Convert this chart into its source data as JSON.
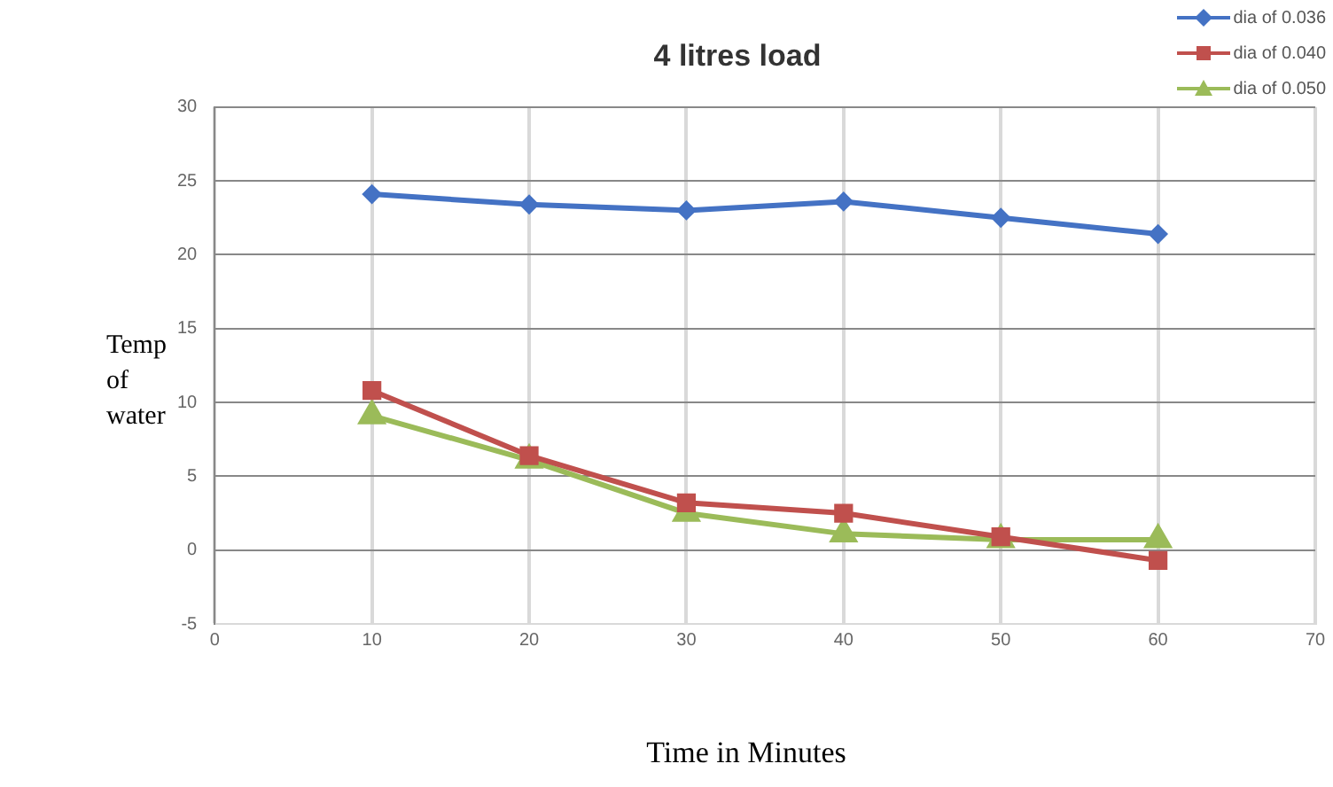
{
  "chart_data": {
    "type": "line",
    "title": "4 litres load",
    "xlabel": "Time in Minutes",
    "ylabel": "Temp of water",
    "x": [
      10,
      20,
      30,
      40,
      50,
      60
    ],
    "series": [
      {
        "name": "dia of 0.036",
        "color": "#4472c4",
        "marker": "diamond",
        "values": [
          24.1,
          23.4,
          23.0,
          23.6,
          22.5,
          21.4
        ]
      },
      {
        "name": "dia of 0.040",
        "color": "#c0504d",
        "marker": "square",
        "values": [
          10.8,
          6.4,
          3.2,
          2.5,
          0.9,
          -0.7
        ]
      },
      {
        "name": "dia of 0.050",
        "color": "#9bbb59",
        "marker": "triangle",
        "values": [
          9.1,
          6.1,
          2.5,
          1.1,
          0.7,
          0.7
        ]
      }
    ],
    "xlim": [
      0,
      70
    ],
    "xticks": [
      0,
      10,
      20,
      30,
      40,
      50,
      60,
      70
    ],
    "ylim": [
      -5,
      30
    ],
    "yticks": [
      -5,
      0,
      5,
      10,
      15,
      20,
      25,
      30
    ],
    "grid": true,
    "legend": "top right"
  }
}
